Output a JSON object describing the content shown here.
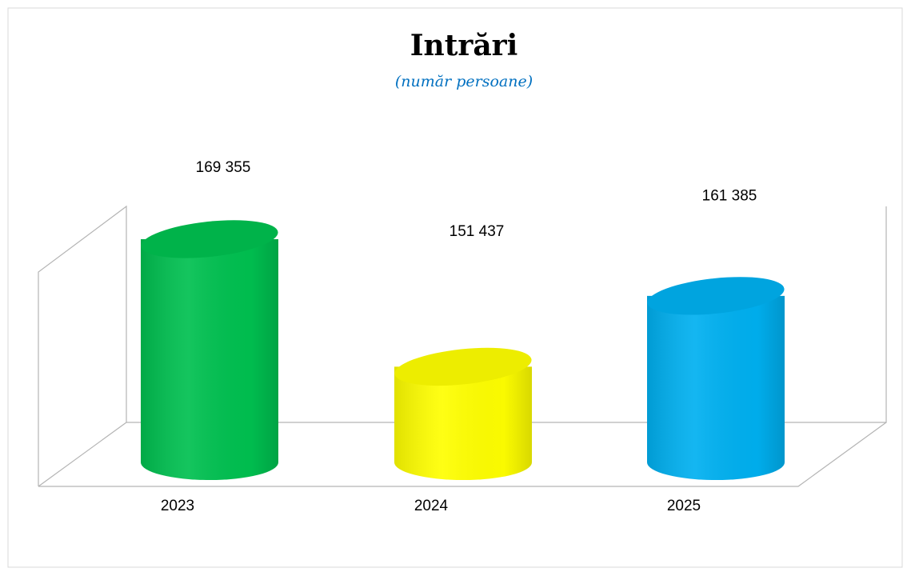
{
  "chart_data": {
    "type": "cylinder-bar",
    "title": "Intrări",
    "subtitle": "(număr persoane)",
    "categories": [
      "2023",
      "2024",
      "2025"
    ],
    "values": [
      169355,
      151437,
      161385
    ],
    "value_labels": [
      "169 355",
      "151 437",
      "161 385"
    ],
    "colors": [
      "#00c050",
      "#ffff00",
      "#00b0f0"
    ],
    "ylim": [
      138000,
      172000
    ]
  }
}
